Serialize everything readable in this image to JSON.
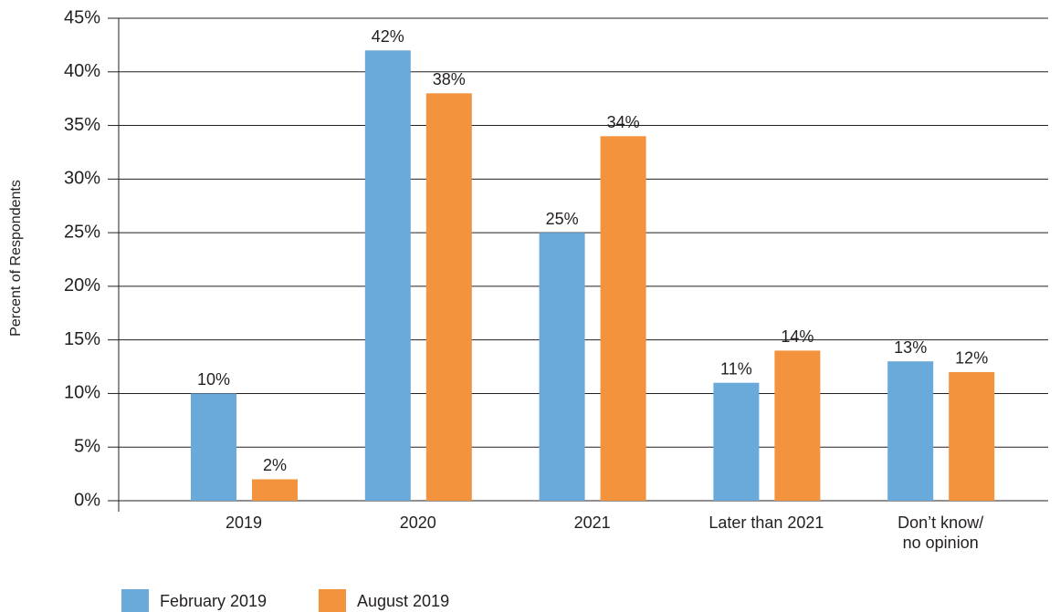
{
  "chart_data": {
    "type": "bar",
    "y_axis_label": "Percent of Respondents",
    "categories": [
      "2019",
      "2020",
      "2021",
      "Later than 2021",
      "Don’t know/\nno opinion"
    ],
    "series": [
      {
        "name": "February 2019",
        "color": "#6aaadb",
        "values": [
          10,
          42,
          25,
          11,
          13
        ],
        "value_labels": [
          "10%",
          "42%",
          "25%",
          "11%",
          "13%"
        ]
      },
      {
        "name": "August 2019",
        "color": "#f4933d",
        "values": [
          2,
          38,
          34,
          14,
          12
        ],
        "value_labels": [
          "2%",
          "38%",
          "34%",
          "14%",
          "12%"
        ]
      }
    ],
    "ylim": [
      0,
      45
    ],
    "yticks": [
      {
        "value": 0,
        "label": "0%"
      },
      {
        "value": 5,
        "label": "5%"
      },
      {
        "value": 10,
        "label": "10%"
      },
      {
        "value": 15,
        "label": "15%"
      },
      {
        "value": 20,
        "label": "20%"
      },
      {
        "value": 25,
        "label": "25%"
      },
      {
        "value": 30,
        "label": "30%"
      },
      {
        "value": 35,
        "label": "35%"
      },
      {
        "value": 40,
        "label": "40%"
      },
      {
        "value": 45,
        "label": "45%"
      }
    ],
    "grid": true,
    "legend": "bottom-left"
  }
}
